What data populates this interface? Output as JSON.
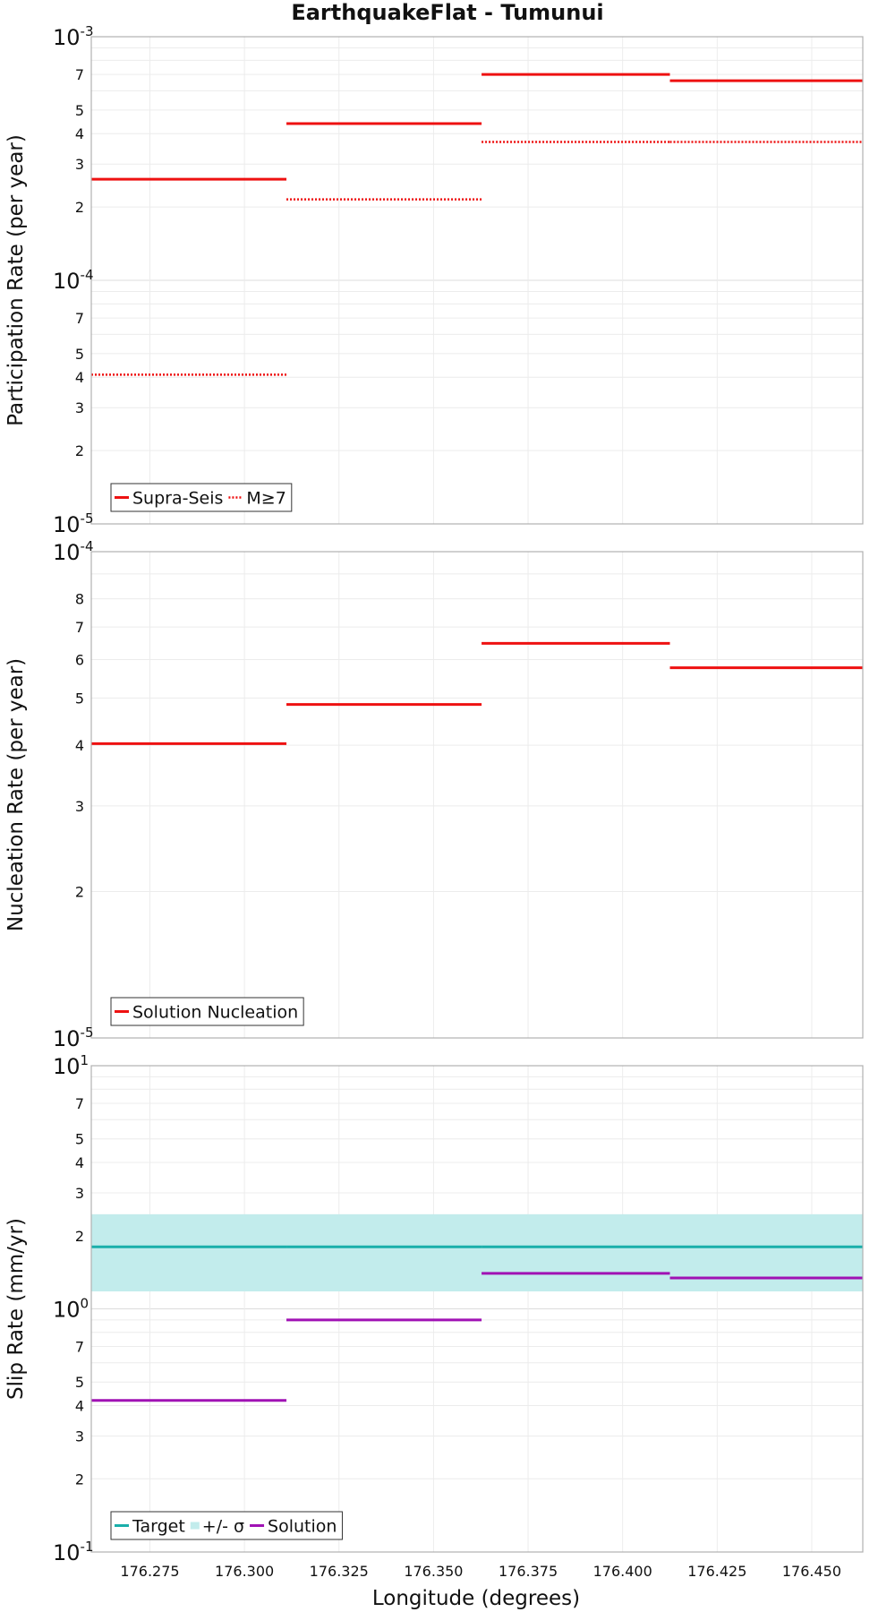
{
  "chart_data": {
    "type": "line",
    "title": "EarthquakeFlat - Tumunui",
    "xlabel": "Longitude (degrees)",
    "xlim": [
      176.2595,
      176.4635
    ],
    "x_ticks": [
      "176.275",
      "176.300",
      "176.325",
      "176.350",
      "176.375",
      "176.400",
      "176.425",
      "176.450"
    ],
    "x_tick_values": [
      176.275,
      176.3,
      176.325,
      176.35,
      176.375,
      176.4,
      176.425,
      176.45
    ],
    "segments_x": [
      [
        176.2595,
        176.3111
      ],
      [
        176.3111,
        176.3627
      ],
      [
        176.3627,
        176.4125
      ],
      [
        176.4125,
        176.4635
      ]
    ],
    "panels": [
      {
        "ylabel": "Participation Rate (per year)",
        "yscale": "log",
        "ylim": [
          1e-05,
          0.001
        ],
        "decade_labels": [
          {
            "base": "10",
            "exp": "-3",
            "value": 0.001
          },
          {
            "base": "10",
            "exp": "-4",
            "value": 0.0001
          },
          {
            "base": "10",
            "exp": "-5",
            "value": 1e-05
          }
        ],
        "minor_tick_labels": [
          "7",
          "5",
          "4",
          "3",
          "2",
          "7",
          "5",
          "4",
          "3",
          "2"
        ],
        "minor_tick_values": [
          0.0007,
          0.0005,
          0.0004,
          0.0003,
          0.0002,
          7e-05,
          5e-05,
          4e-05,
          3e-05,
          2e-05
        ],
        "series": [
          {
            "name": "Supra-Seis",
            "style": "solid",
            "color": "#ee1111",
            "values": [
              0.00026,
              0.00044,
              0.0007,
              0.00066
            ]
          },
          {
            "name": "M≥7",
            "style": "dotted",
            "color": "#ee1111",
            "values": [
              4.1e-05,
              0.000215,
              0.00037,
              0.00037
            ]
          }
        ],
        "legend": [
          {
            "label": "Supra-Seis",
            "kind": "line",
            "style": "solid",
            "color": "#ee1111"
          },
          {
            "label": "M≥7",
            "kind": "line",
            "style": "dotted",
            "color": "#ee1111"
          }
        ]
      },
      {
        "ylabel": "Nucleation Rate (per year)",
        "yscale": "log",
        "ylim": [
          1e-05,
          0.0001
        ],
        "decade_labels": [
          {
            "base": "10",
            "exp": "-4",
            "value": 0.0001
          },
          {
            "base": "10",
            "exp": "-5",
            "value": 1e-05
          }
        ],
        "minor_tick_labels": [
          "8",
          "7",
          "6",
          "5",
          "4",
          "3",
          "2"
        ],
        "minor_tick_values": [
          8e-05,
          7e-05,
          6e-05,
          5e-05,
          4e-05,
          3e-05,
          2e-05
        ],
        "series": [
          {
            "name": "Solution Nucleation",
            "style": "solid",
            "color": "#ee1111",
            "values": [
              4.03e-05,
              4.85e-05,
              6.48e-05,
              5.77e-05
            ]
          }
        ],
        "legend": [
          {
            "label": "Solution Nucleation",
            "kind": "line",
            "style": "solid",
            "color": "#ee1111"
          }
        ]
      },
      {
        "ylabel": "Slip Rate (mm/yr)",
        "yscale": "log",
        "ylim": [
          0.1,
          10
        ],
        "decade_labels": [
          {
            "base": "10",
            "exp": "1",
            "value": 10
          },
          {
            "base": "10",
            "exp": "0",
            "value": 1
          },
          {
            "base": "10",
            "exp": "-1",
            "value": 0.1
          }
        ],
        "minor_tick_labels": [
          "7",
          "5",
          "4",
          "3",
          "2",
          "7",
          "5",
          "4",
          "3",
          "2"
        ],
        "minor_tick_values": [
          7,
          5,
          4,
          3,
          2,
          0.7,
          0.5,
          0.4,
          0.3,
          0.2
        ],
        "band": {
          "name": "+/- σ",
          "low": 1.18,
          "high": 2.45,
          "color": "#c2ecec"
        },
        "series": [
          {
            "name": "Target",
            "style": "solid",
            "color": "#1aafaa",
            "values": [
              1.8,
              1.8,
              1.8,
              1.8
            ]
          },
          {
            "name": "Solution",
            "style": "solid",
            "color": "#a012b4",
            "values": [
              0.42,
              0.9,
              1.4,
              1.34
            ]
          }
        ],
        "legend": [
          {
            "label": "Target",
            "kind": "line",
            "style": "solid",
            "color": "#1aafaa"
          },
          {
            "label": "+/- σ",
            "kind": "patch",
            "color": "#c2ecec"
          },
          {
            "label": "Solution",
            "kind": "line",
            "style": "solid",
            "color": "#a012b4"
          }
        ]
      }
    ]
  }
}
